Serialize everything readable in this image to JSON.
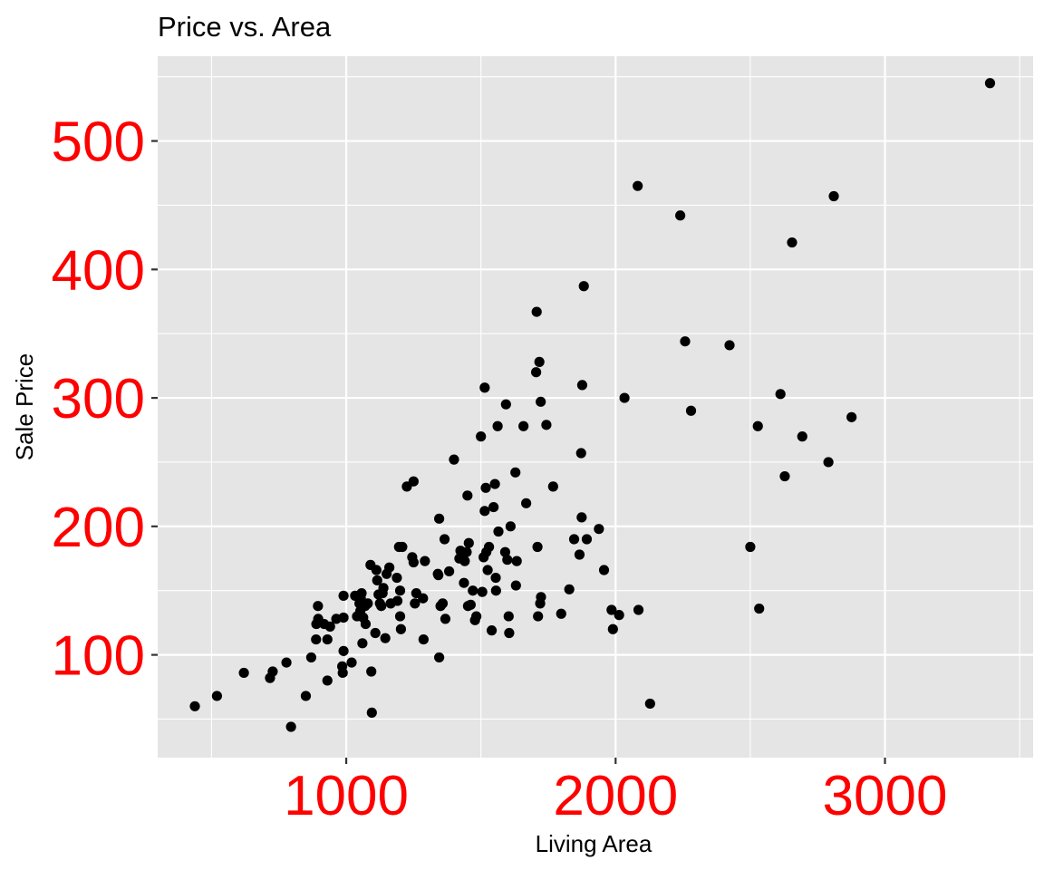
{
  "chart_data": {
    "type": "scatter",
    "title": "Price vs. Area",
    "xlabel": "Living Area",
    "ylabel": "Sale Price",
    "xlim": [
      300,
      3550
    ],
    "ylim": [
      20,
      566
    ],
    "x_ticks": [
      1000,
      2000,
      3000
    ],
    "x_tick_labels": [
      "1000",
      "2000",
      "3000"
    ],
    "x_minor_ticks": [
      500,
      1500,
      2500,
      3500
    ],
    "y_ticks": [
      100,
      200,
      300,
      400,
      500
    ],
    "y_tick_labels": [
      "100",
      "200",
      "300",
      "400",
      "500"
    ],
    "y_minor_ticks": [
      50,
      150,
      250,
      350,
      450,
      550
    ],
    "grid": true,
    "background": "#e5e5e5",
    "tick_label_color": "#ff0000",
    "point_color": "#000000",
    "points": [
      [
        438,
        60
      ],
      [
        520,
        68
      ],
      [
        620,
        86
      ],
      [
        717,
        82
      ],
      [
        727,
        87
      ],
      [
        778,
        94
      ],
      [
        795,
        44
      ],
      [
        850,
        68
      ],
      [
        870,
        98
      ],
      [
        888,
        112
      ],
      [
        889,
        124
      ],
      [
        895,
        138
      ],
      [
        896,
        128
      ],
      [
        918,
        124
      ],
      [
        930,
        80
      ],
      [
        930,
        112
      ],
      [
        940,
        122
      ],
      [
        963,
        128
      ],
      [
        985,
        91
      ],
      [
        987,
        86
      ],
      [
        990,
        103
      ],
      [
        990,
        146
      ],
      [
        990,
        129
      ],
      [
        1020,
        94
      ],
      [
        1033,
        146
      ],
      [
        1040,
        130
      ],
      [
        1049,
        140
      ],
      [
        1052,
        134
      ],
      [
        1054,
        144
      ],
      [
        1057,
        148
      ],
      [
        1060,
        109
      ],
      [
        1063,
        129
      ],
      [
        1070,
        138
      ],
      [
        1072,
        124
      ],
      [
        1080,
        140
      ],
      [
        1090,
        170
      ],
      [
        1095,
        55
      ],
      [
        1093,
        87
      ],
      [
        1108,
        117
      ],
      [
        1112,
        166
      ],
      [
        1115,
        158
      ],
      [
        1120,
        147
      ],
      [
        1125,
        140
      ],
      [
        1130,
        138
      ],
      [
        1135,
        148
      ],
      [
        1138,
        152
      ],
      [
        1145,
        113
      ],
      [
        1150,
        163
      ],
      [
        1160,
        168
      ],
      [
        1165,
        140
      ],
      [
        1188,
        160
      ],
      [
        1190,
        142
      ],
      [
        1196,
        184
      ],
      [
        1200,
        150
      ],
      [
        1200,
        130
      ],
      [
        1203,
        120
      ],
      [
        1208,
        184
      ],
      [
        1225,
        231
      ],
      [
        1245,
        176
      ],
      [
        1250,
        235
      ],
      [
        1250,
        172
      ],
      [
        1255,
        140
      ],
      [
        1260,
        148
      ],
      [
        1285,
        144
      ],
      [
        1287,
        112
      ],
      [
        1292,
        173
      ],
      [
        1340,
        163
      ],
      [
        1342,
        162
      ],
      [
        1345,
        206
      ],
      [
        1345,
        98
      ],
      [
        1350,
        138
      ],
      [
        1358,
        140
      ],
      [
        1365,
        190
      ],
      [
        1368,
        128
      ],
      [
        1382,
        165
      ],
      [
        1400,
        252
      ],
      [
        1420,
        175
      ],
      [
        1424,
        181
      ],
      [
        1437,
        156
      ],
      [
        1440,
        173
      ],
      [
        1447,
        180
      ],
      [
        1450,
        224
      ],
      [
        1452,
        138
      ],
      [
        1455,
        187
      ],
      [
        1462,
        139
      ],
      [
        1470,
        150
      ],
      [
        1478,
        127
      ],
      [
        1483,
        130
      ],
      [
        1500,
        270
      ],
      [
        1505,
        149
      ],
      [
        1510,
        176
      ],
      [
        1514,
        308
      ],
      [
        1514,
        212
      ],
      [
        1518,
        230
      ],
      [
        1520,
        180
      ],
      [
        1525,
        166
      ],
      [
        1530,
        184
      ],
      [
        1540,
        119
      ],
      [
        1547,
        215
      ],
      [
        1552,
        233
      ],
      [
        1555,
        160
      ],
      [
        1556,
        150
      ],
      [
        1562,
        278
      ],
      [
        1565,
        196
      ],
      [
        1590,
        180
      ],
      [
        1593,
        295
      ],
      [
        1598,
        174
      ],
      [
        1603,
        130
      ],
      [
        1605,
        117
      ],
      [
        1610,
        200
      ],
      [
        1628,
        242
      ],
      [
        1630,
        154
      ],
      [
        1633,
        173
      ],
      [
        1658,
        278
      ],
      [
        1668,
        218
      ],
      [
        1705,
        320
      ],
      [
        1707,
        367
      ],
      [
        1710,
        184
      ],
      [
        1712,
        130
      ],
      [
        1717,
        328
      ],
      [
        1720,
        140
      ],
      [
        1722,
        297
      ],
      [
        1723,
        145
      ],
      [
        1743,
        279
      ],
      [
        1768,
        231
      ],
      [
        1798,
        132
      ],
      [
        1828,
        151
      ],
      [
        1846,
        190
      ],
      [
        1866,
        178
      ],
      [
        1872,
        257
      ],
      [
        1874,
        207
      ],
      [
        1876,
        310
      ],
      [
        1882,
        387
      ],
      [
        1893,
        190
      ],
      [
        1938,
        198
      ],
      [
        1957,
        166
      ],
      [
        1985,
        135
      ],
      [
        1990,
        120
      ],
      [
        2013,
        131
      ],
      [
        2033,
        300
      ],
      [
        2082,
        465
      ],
      [
        2085,
        135
      ],
      [
        2128,
        62
      ],
      [
        2240,
        442
      ],
      [
        2258,
        344
      ],
      [
        2280,
        290
      ],
      [
        2423,
        341
      ],
      [
        2500,
        184
      ],
      [
        2528,
        278
      ],
      [
        2533,
        136
      ],
      [
        2612,
        303
      ],
      [
        2628,
        239
      ],
      [
        2655,
        421
      ],
      [
        2693,
        270
      ],
      [
        2790,
        250
      ],
      [
        2810,
        457
      ],
      [
        2876,
        285
      ],
      [
        3390,
        545
      ]
    ]
  }
}
